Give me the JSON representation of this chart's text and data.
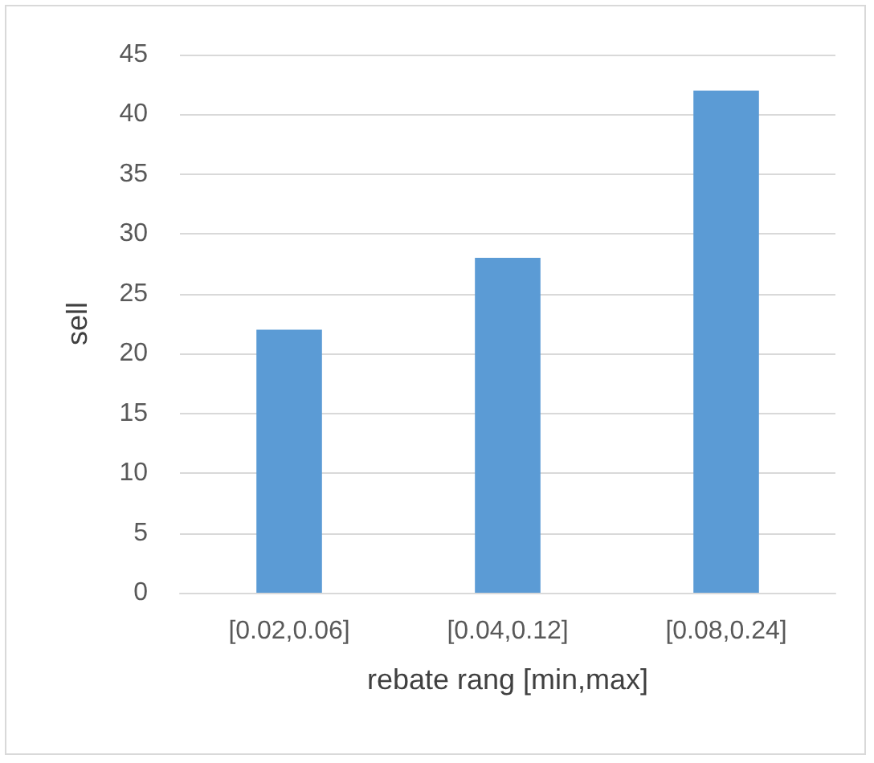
{
  "chart_data": {
    "type": "bar",
    "xlabel": "rebate rang [min,max]",
    "ylabel": "sell",
    "categories": [
      "[0.02,0.06]",
      "[0.04,0.12]",
      "[0.08,0.24]"
    ],
    "values": [
      22,
      28,
      42
    ],
    "color": "#5b9bd5",
    "ylim": [
      0,
      45
    ],
    "yticks": [
      0,
      5,
      10,
      15,
      20,
      25,
      30,
      35,
      40,
      45
    ],
    "grid": "y"
  }
}
